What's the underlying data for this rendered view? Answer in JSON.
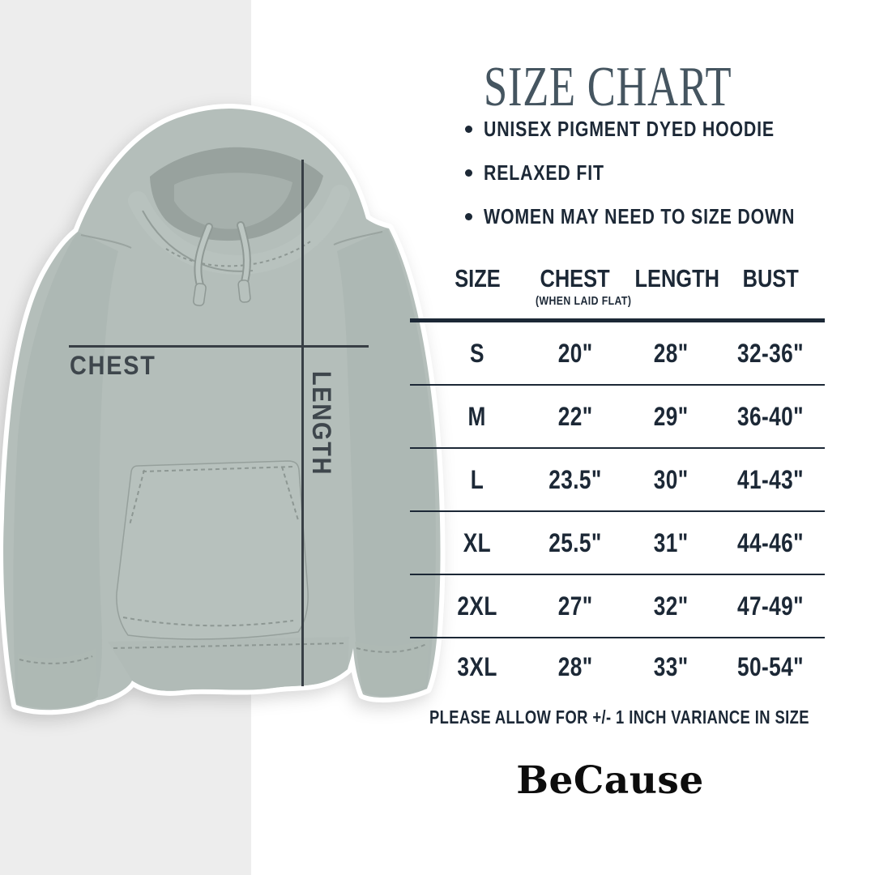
{
  "title": "SIZE CHART",
  "bullets": [
    "UNISEX PIGMENT DYED HOODIE",
    "RELAXED FIT",
    "WOMEN MAY NEED TO SIZE DOWN"
  ],
  "product_diagram": {
    "chest_label": "CHEST",
    "length_label": "LENGTH"
  },
  "chart_data": {
    "type": "table",
    "title": "SIZE CHART",
    "columns": [
      "SIZE",
      "CHEST",
      "LENGTH",
      "BUST"
    ],
    "column_note": {
      "column": "CHEST",
      "text": "(WHEN LAID FLAT)"
    },
    "rows": [
      [
        "S",
        "20\"",
        "28\"",
        "32-36\""
      ],
      [
        "M",
        "22\"",
        "29\"",
        "36-40\""
      ],
      [
        "L",
        "23.5\"",
        "30\"",
        "41-43\""
      ],
      [
        "XL",
        "25.5\"",
        "31\"",
        "44-46\""
      ],
      [
        "2XL",
        "27\"",
        "32\"",
        "47-49\""
      ],
      [
        "3XL",
        "28\"",
        "33\"",
        "50-54\""
      ]
    ]
  },
  "footer_note": "PLEASE ALLOW FOR +/- 1 INCH VARIANCE IN SIZE",
  "brand": "BeCause",
  "colors": {
    "ink": "#1c2836",
    "title": "#455560",
    "band": "#ededed",
    "hoodie_base": "#b4beba",
    "hoodie_shade": "#abb5b1",
    "hoodie_deep": "#98a29e",
    "measure_line": "#383f45",
    "brand_ink": "#0d0d0d"
  }
}
